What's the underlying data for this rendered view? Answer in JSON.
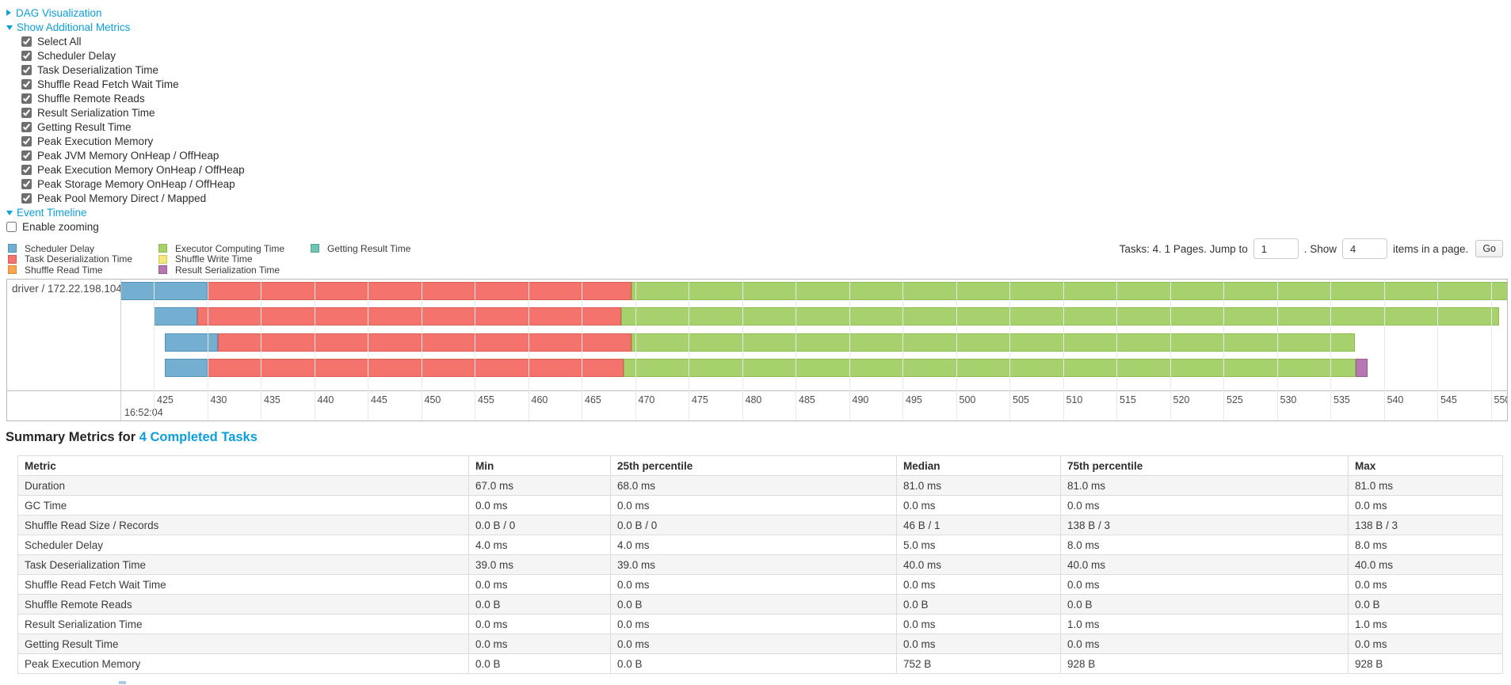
{
  "controls": {
    "dag_label": "DAG Visualization",
    "metrics_label": "Show Additional Metrics",
    "metric_items": [
      {
        "label": "Select All",
        "checked": true
      },
      {
        "label": "Scheduler Delay",
        "checked": true
      },
      {
        "label": "Task Deserialization Time",
        "checked": true
      },
      {
        "label": "Shuffle Read Fetch Wait Time",
        "checked": true
      },
      {
        "label": "Shuffle Remote Reads",
        "checked": true
      },
      {
        "label": "Result Serialization Time",
        "checked": true
      },
      {
        "label": "Getting Result Time",
        "checked": true
      },
      {
        "label": "Peak Execution Memory",
        "checked": true
      },
      {
        "label": "Peak JVM Memory OnHeap / OffHeap",
        "checked": true
      },
      {
        "label": "Peak Execution Memory OnHeap / OffHeap",
        "checked": true
      },
      {
        "label": "Peak Storage Memory OnHeap / OffHeap",
        "checked": true
      },
      {
        "label": "Peak Pool Memory Direct / Mapped",
        "checked": true
      }
    ],
    "event_timeline_label": "Event Timeline",
    "enable_zooming": {
      "label": "Enable zooming",
      "checked": false
    }
  },
  "legend": {
    "columns": [
      [
        {
          "label": "Scheduler Delay",
          "type": "scheduler_delay"
        },
        {
          "label": "Task Deserialization Time",
          "type": "task_deserialization"
        },
        {
          "label": "Shuffle Read Time",
          "type": "shuffle_read"
        }
      ],
      [
        {
          "label": "Executor Computing Time",
          "type": "executor_computing"
        },
        {
          "label": "Shuffle Write Time",
          "type": "shuffle_write"
        },
        {
          "label": "Result Serialization Time",
          "type": "result_serialization"
        }
      ],
      [
        {
          "label": "Getting Result Time",
          "type": "getting_result"
        }
      ]
    ]
  },
  "colors": {
    "link": "#0C9FDB",
    "segment_types": {
      "scheduler_delay": {
        "fill": "#74AFD1",
        "border": "#5293B5"
      },
      "task_deserialization": {
        "fill": "#F4736C",
        "border": "#DC5B54"
      },
      "shuffle_read": {
        "fill": "#F9A450",
        "border": "#DB8A39"
      },
      "executor_computing": {
        "fill": "#A6D16C",
        "border": "#8BBC4F"
      },
      "shuffle_write": {
        "fill": "#F3E77E",
        "border": "#D6C95C"
      },
      "result_serialization": {
        "fill": "#B778B1",
        "border": "#9C5A96"
      },
      "getting_result": {
        "fill": "#70C4B4",
        "border": "#53A795"
      }
    }
  },
  "pagination": {
    "tasks_text": "Tasks: 4. 1 Pages. Jump to",
    "jump_value": "1",
    "show_text": ". Show",
    "show_value": "4",
    "items_text": "items in a page.",
    "go_label": "Go"
  },
  "timeline": {
    "group_label": "driver / 172.22.198.104",
    "axis": {
      "major_label": "16:52:04",
      "tick_start": 425,
      "tick_end": 550,
      "tick_step": 5
    },
    "tasks": [
      {
        "segments": [
          {
            "type": "scheduler_delay",
            "start": 421.9,
            "end": 430.0
          },
          {
            "type": "task_deserialization",
            "start": 430.0,
            "end": 469.7
          },
          {
            "type": "executor_computing",
            "start": 469.7,
            "end": 552.6
          }
        ]
      },
      {
        "segments": [
          {
            "type": "scheduler_delay",
            "start": 425.0,
            "end": 429.1
          },
          {
            "type": "task_deserialization",
            "start": 429.1,
            "end": 468.7
          },
          {
            "type": "executor_computing",
            "start": 468.7,
            "end": 550.8
          }
        ]
      },
      {
        "segments": [
          {
            "type": "scheduler_delay",
            "start": 426.0,
            "end": 431.0
          },
          {
            "type": "task_deserialization",
            "start": 431.0,
            "end": 469.7
          },
          {
            "type": "executor_computing",
            "start": 469.7,
            "end": 537.3
          }
        ]
      },
      {
        "segments": [
          {
            "type": "scheduler_delay",
            "start": 426.0,
            "end": 430.0
          },
          {
            "type": "task_deserialization",
            "start": 430.0,
            "end": 468.9
          },
          {
            "type": "executor_computing",
            "start": 468.9,
            "end": 537.4
          },
          {
            "type": "result_serialization",
            "start": 537.4,
            "end": 538.5
          }
        ]
      }
    ]
  },
  "summary": {
    "title_prefix": "Summary Metrics for",
    "title_link": "4 Completed Tasks",
    "table": {
      "headers": [
        "Metric",
        "Min",
        "25th percentile",
        "Median",
        "75th percentile",
        "Max"
      ],
      "rows": [
        [
          "Duration",
          "67.0 ms",
          "68.0 ms",
          "81.0 ms",
          "81.0 ms",
          "81.0 ms"
        ],
        [
          "GC Time",
          "0.0 ms",
          "0.0 ms",
          "0.0 ms",
          "0.0 ms",
          "0.0 ms"
        ],
        [
          "Shuffle Read Size / Records",
          "0.0 B / 0",
          "0.0 B / 0",
          "46 B / 1",
          "138 B / 3",
          "138 B / 3"
        ],
        [
          "Scheduler Delay",
          "4.0 ms",
          "4.0 ms",
          "5.0 ms",
          "8.0 ms",
          "8.0 ms"
        ],
        [
          "Task Deserialization Time",
          "39.0 ms",
          "39.0 ms",
          "40.0 ms",
          "40.0 ms",
          "40.0 ms"
        ],
        [
          "Shuffle Read Fetch Wait Time",
          "0.0 ms",
          "0.0 ms",
          "0.0 ms",
          "0.0 ms",
          "0.0 ms"
        ],
        [
          "Shuffle Remote Reads",
          "0.0 B",
          "0.0 B",
          "0.0 B",
          "0.0 B",
          "0.0 B"
        ],
        [
          "Result Serialization Time",
          "0.0 ms",
          "0.0 ms",
          "0.0 ms",
          "1.0 ms",
          "1.0 ms"
        ],
        [
          "Getting Result Time",
          "0.0 ms",
          "0.0 ms",
          "0.0 ms",
          "0.0 ms",
          "0.0 ms"
        ],
        [
          "Peak Execution Memory",
          "0.0 B",
          "0.0 B",
          "752 B",
          "928 B",
          "928 B"
        ]
      ]
    }
  }
}
